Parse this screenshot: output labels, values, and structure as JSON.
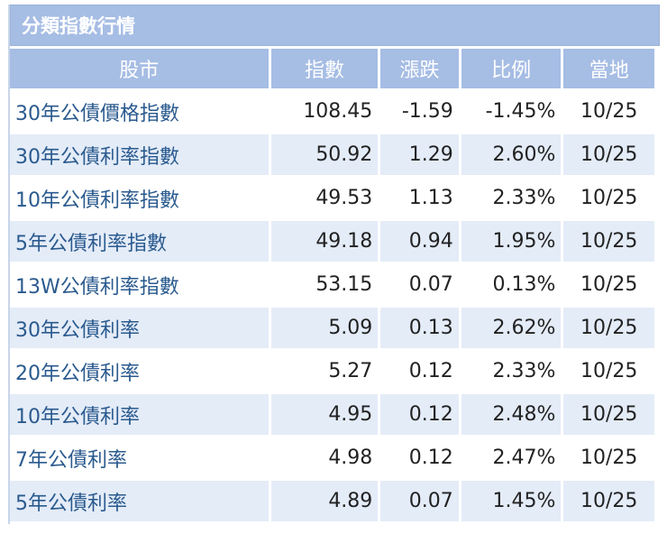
{
  "panel": {
    "title": "分類指數行情"
  },
  "columns": [
    "股市",
    "指數",
    "漲跌",
    "比例",
    "當地"
  ],
  "rows": [
    {
      "name": "30年公債價格指數",
      "index": "108.45",
      "change": "-1.59",
      "pct": "-1.45%",
      "date": "10/25",
      "dir": "down"
    },
    {
      "name": "30年公債利率指數",
      "index": "50.92",
      "change": "1.29",
      "pct": "2.60%",
      "date": "10/25",
      "dir": "up"
    },
    {
      "name": "10年公債利率指數",
      "index": "49.53",
      "change": "1.13",
      "pct": "2.33%",
      "date": "10/25",
      "dir": "up"
    },
    {
      "name": "5年公債利率指數",
      "index": "49.18",
      "change": "0.94",
      "pct": "1.95%",
      "date": "10/25",
      "dir": "up"
    },
    {
      "name": "13W公債利率指數",
      "index": "53.15",
      "change": "0.07",
      "pct": "0.13%",
      "date": "10/25",
      "dir": "up"
    },
    {
      "name": "30年公債利率",
      "index": "5.09",
      "change": "0.13",
      "pct": "2.62%",
      "date": "10/25",
      "dir": "up"
    },
    {
      "name": "20年公債利率",
      "index": "5.27",
      "change": "0.12",
      "pct": "2.33%",
      "date": "10/25",
      "dir": "up"
    },
    {
      "name": "10年公債利率",
      "index": "4.95",
      "change": "0.12",
      "pct": "2.48%",
      "date": "10/25",
      "dir": "up"
    },
    {
      "name": "7年公債利率",
      "index": "4.98",
      "change": "0.12",
      "pct": "2.47%",
      "date": "10/25",
      "dir": "up"
    },
    {
      "name": "5年公債利率",
      "index": "4.89",
      "change": "0.07",
      "pct": "1.45%",
      "date": "10/25",
      "dir": "up"
    }
  ],
  "colors": {
    "up": "#d9452f",
    "down": "#2e8b4a",
    "header": "#a6bde4",
    "name": "#2a5a8e"
  }
}
